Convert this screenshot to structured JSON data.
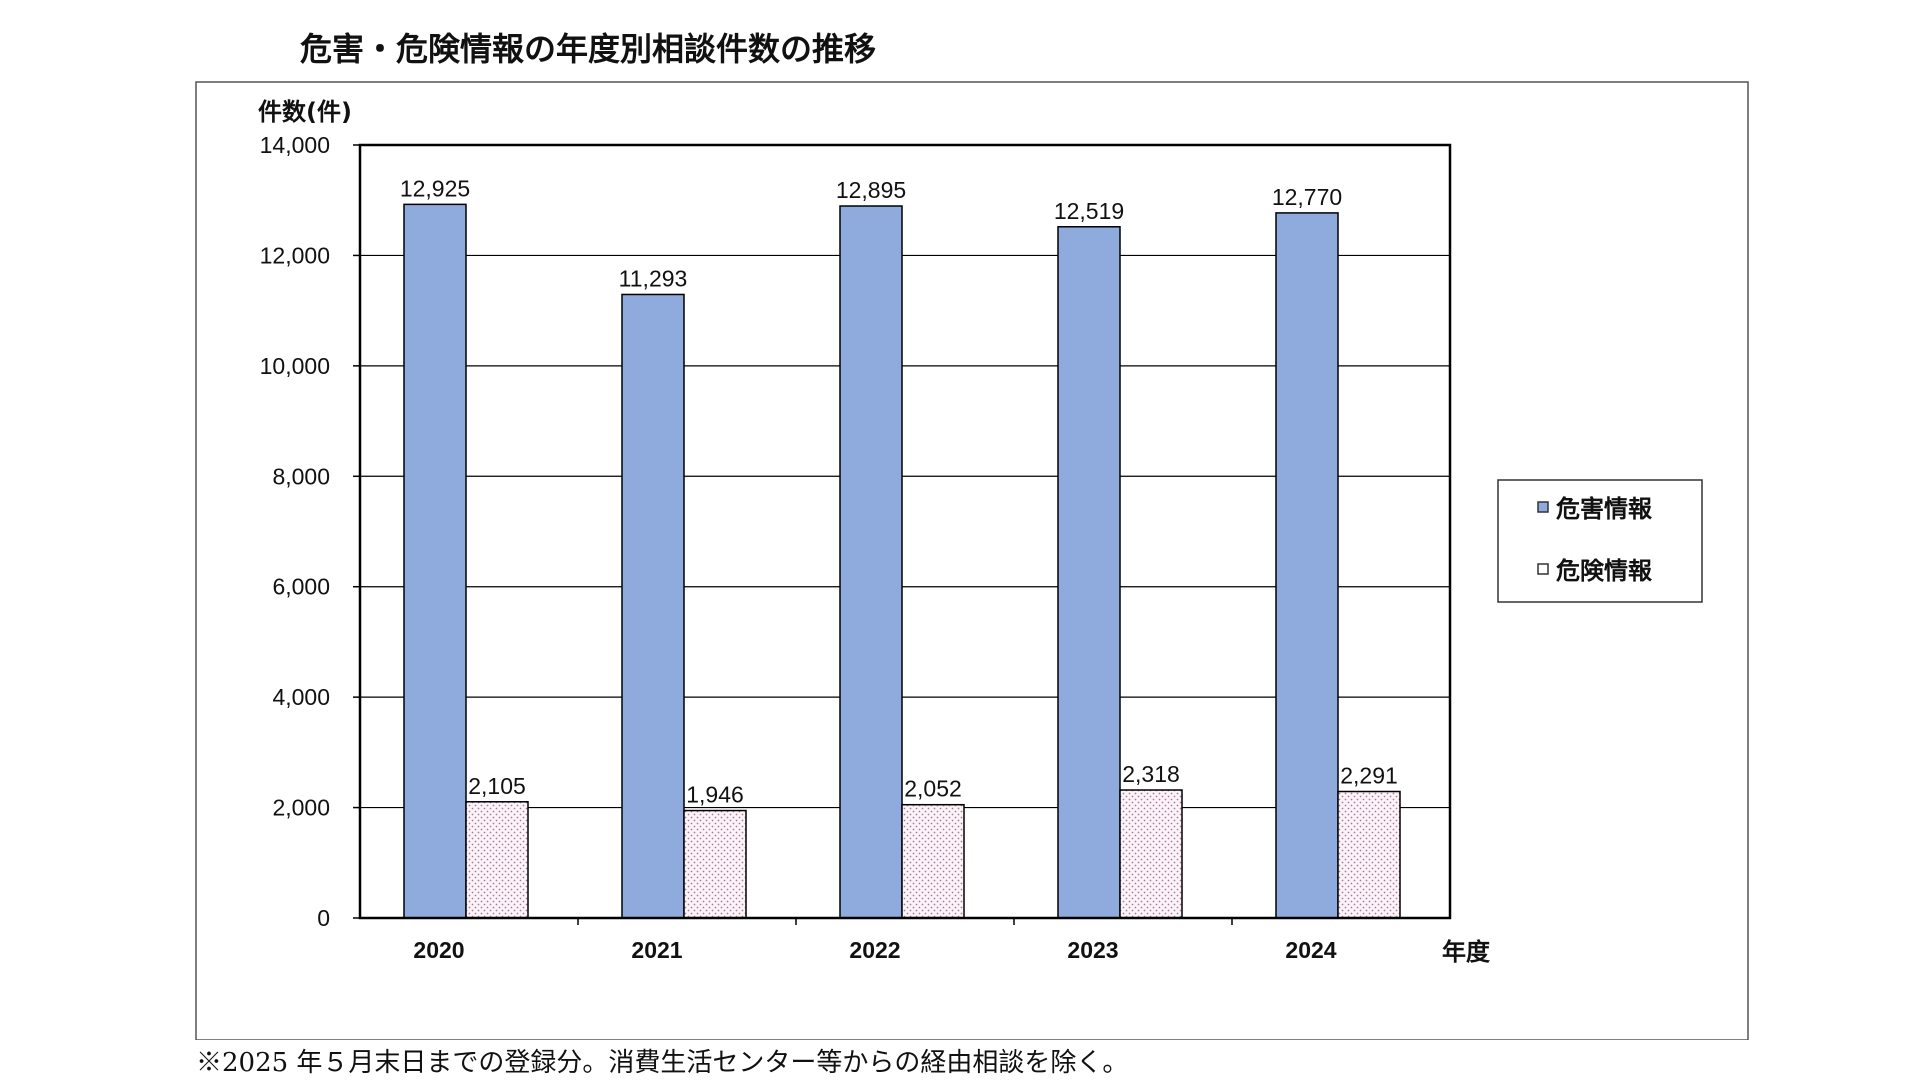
{
  "chart_data": {
    "type": "bar",
    "title": "危害・危険情報の年度別相談件数の推移",
    "ylabel": "件数(件)",
    "xlabel": "年度",
    "categories": [
      "2020",
      "2021",
      "2022",
      "2023",
      "2024"
    ],
    "series": [
      {
        "name": "危害情報",
        "values": [
          12925,
          11293,
          12895,
          12519,
          12770
        ],
        "color": "#8faadc"
      },
      {
        "name": "危険情報",
        "values": [
          2105,
          1946,
          2052,
          2318,
          2291
        ],
        "color": "#f3e6ef"
      }
    ],
    "data_labels": [
      [
        "12,925",
        "11,293",
        "12,895",
        "12,519",
        "12,770"
      ],
      [
        "2,105",
        "1,946",
        "2,052",
        "2,318",
        "2,291"
      ]
    ],
    "ylim": [
      0,
      14000
    ],
    "yticks": [
      0,
      2000,
      4000,
      6000,
      8000,
      10000,
      12000,
      14000
    ],
    "ytick_labels": [
      "0",
      "2,000",
      "4,000",
      "6,000",
      "8,000",
      "10,000",
      "12,000",
      "14,000"
    ],
    "grid": true,
    "legend_position": "right"
  },
  "footnote": "※2025 年５月末日までの登録分。消費生活センター等からの経由相談を除く。"
}
